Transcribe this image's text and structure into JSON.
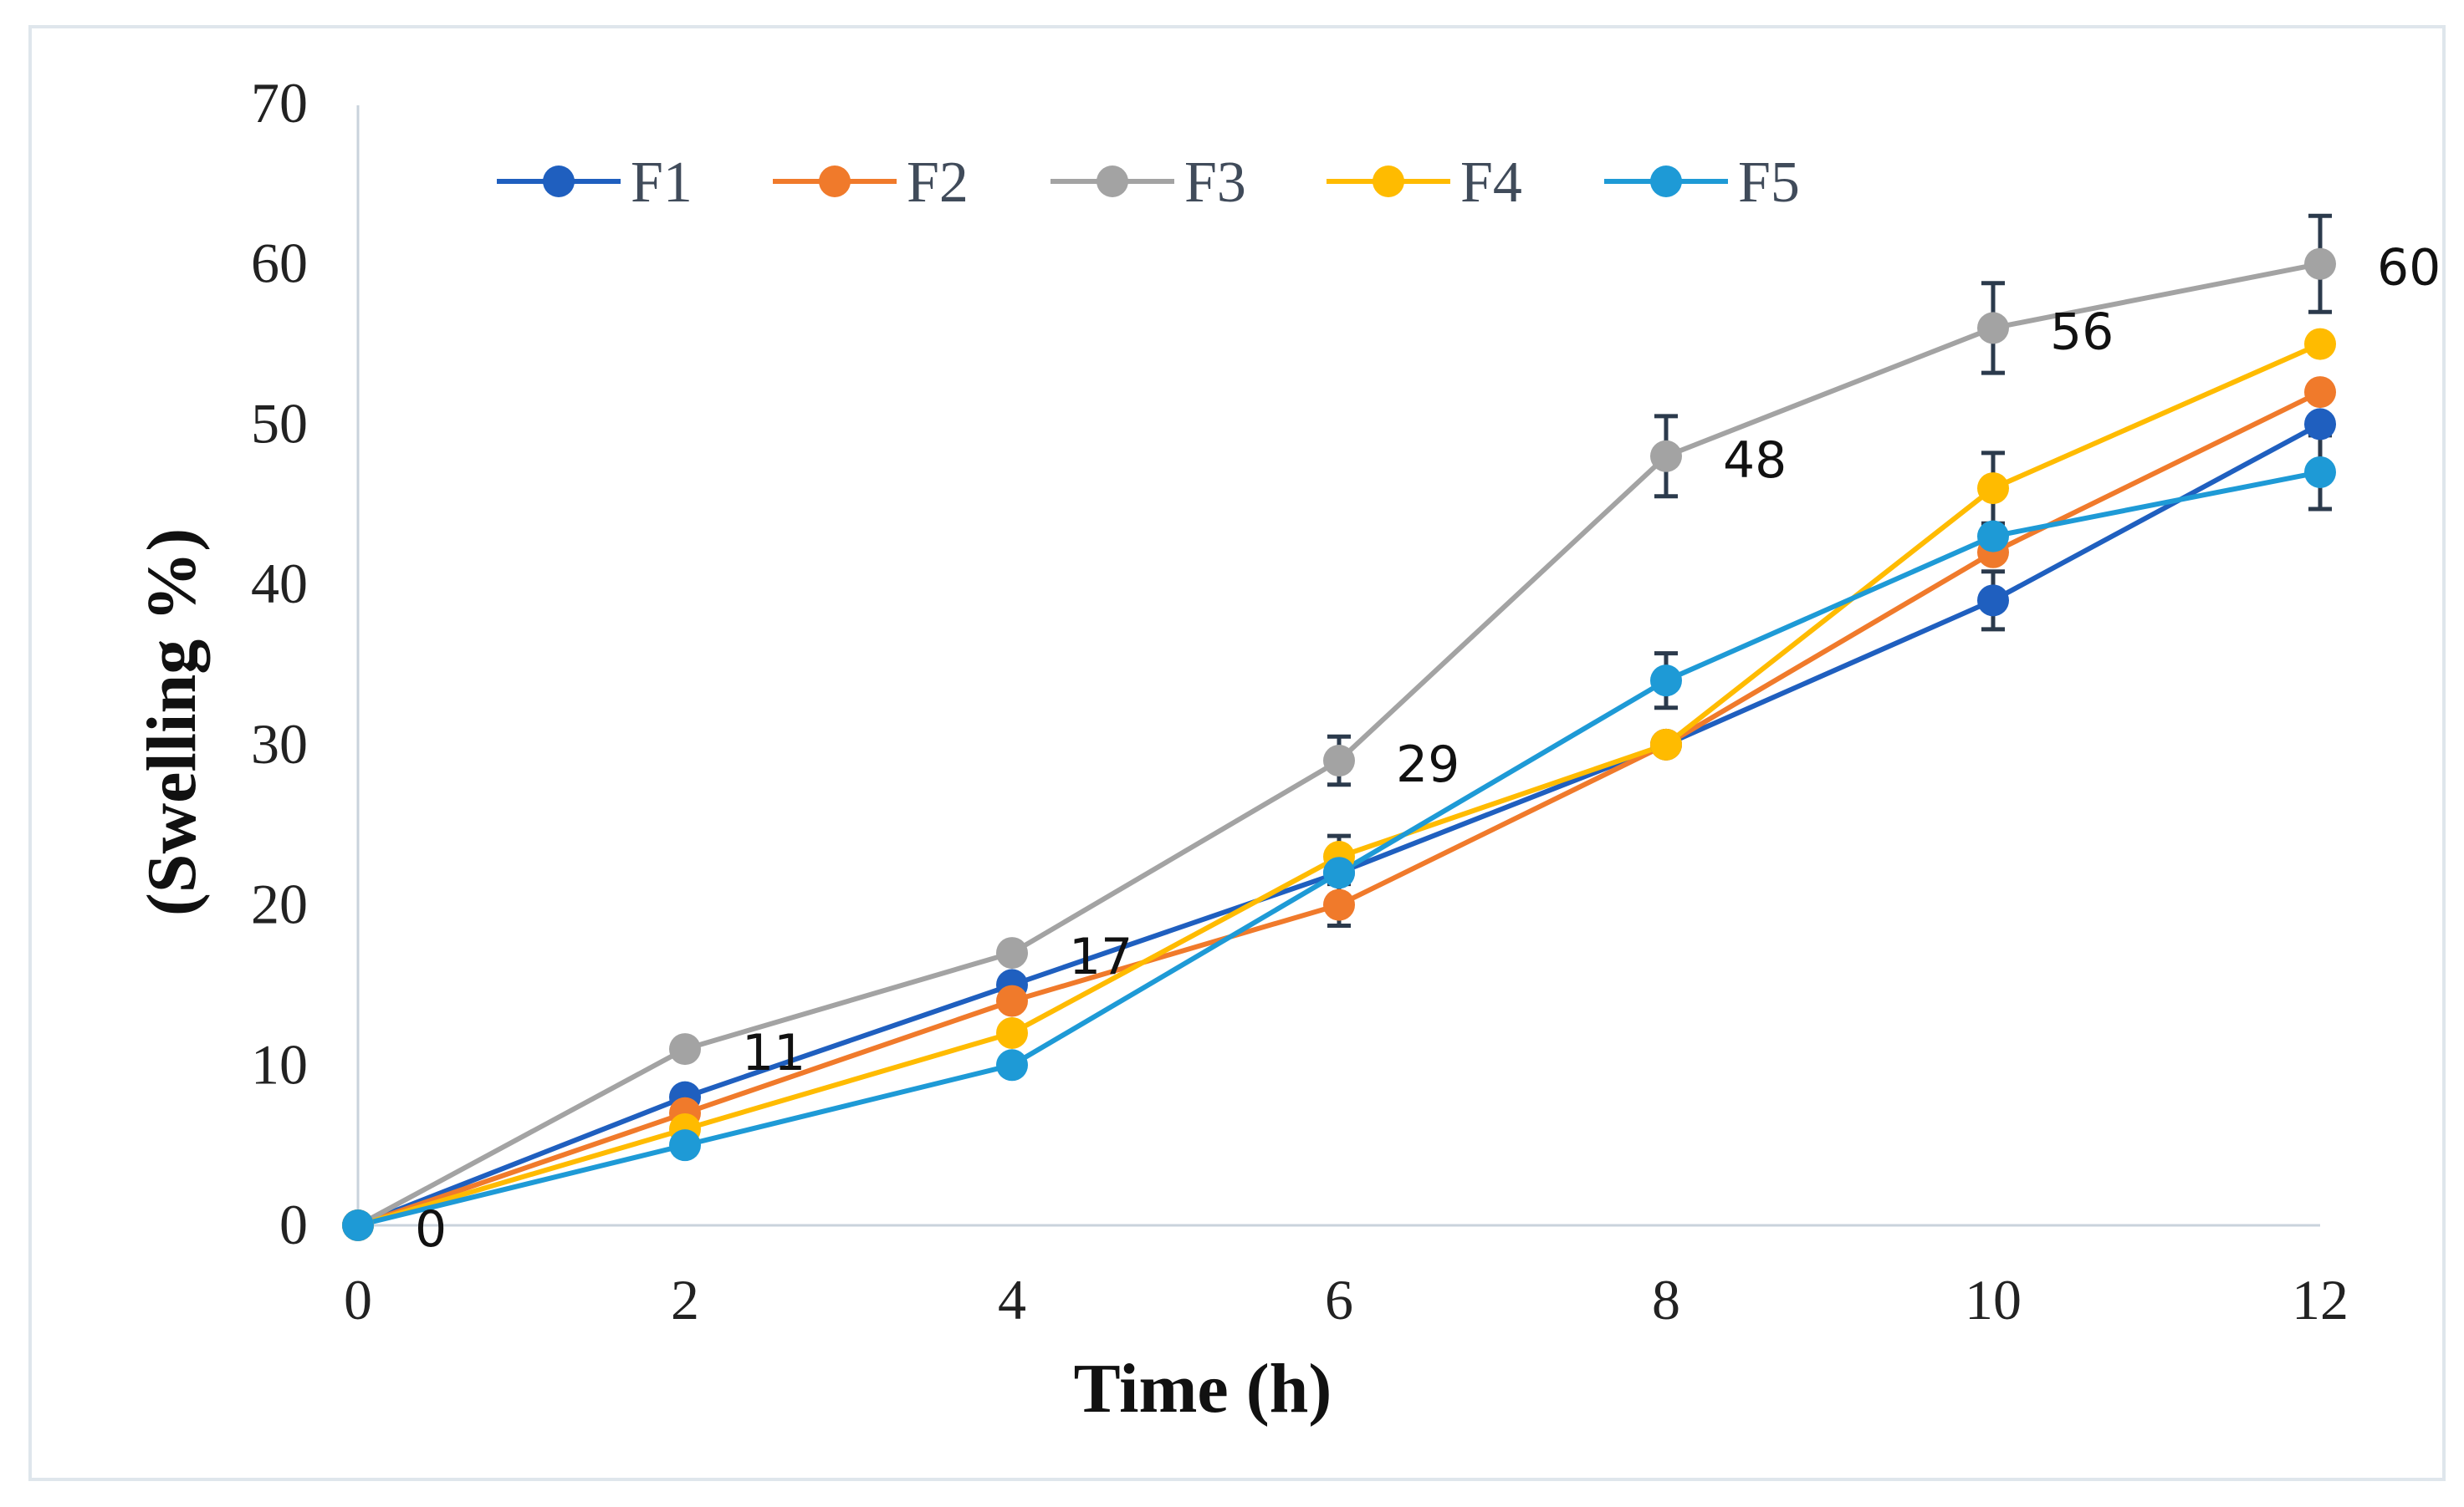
{
  "chart_data": {
    "type": "line",
    "title": "",
    "xlabel": "Time (h)",
    "ylabel": "(Swelling %)",
    "x": [
      0,
      2,
      4,
      6,
      8,
      10,
      12
    ],
    "xlim": [
      0,
      12
    ],
    "ylim": [
      0,
      70
    ],
    "x_ticks": [
      "0",
      "2",
      "4",
      "6",
      "8",
      "10",
      "12"
    ],
    "y_ticks": [
      "0",
      "10",
      "20",
      "30",
      "40",
      "50",
      "60",
      "70"
    ],
    "grid": false,
    "legend_position": "top",
    "series": [
      {
        "name": "F1",
        "color": "#1f5fbf",
        "values": [
          0,
          8,
          15,
          22,
          30,
          39,
          50
        ],
        "errors": [
          0,
          0,
          0,
          0,
          0,
          1.8,
          0
        ]
      },
      {
        "name": "F2",
        "color": "#f07a2b",
        "values": [
          0,
          7,
          14,
          20,
          30,
          42,
          52
        ],
        "errors": [
          0,
          0,
          0,
          1.3,
          0,
          0,
          0
        ]
      },
      {
        "name": "F3",
        "color": "#a3a3a3",
        "values": [
          0,
          11,
          17,
          29,
          48,
          56,
          60
        ],
        "errors": [
          0,
          0,
          0,
          1.5,
          2.5,
          2.8,
          3
        ]
      },
      {
        "name": "F4",
        "color": "#ffbb00",
        "values": [
          0,
          6,
          12,
          23,
          30,
          46,
          55
        ],
        "errors": [
          0,
          0,
          0,
          1.3,
          0,
          2.2,
          0
        ]
      },
      {
        "name": "F5",
        "color": "#1e9ad6",
        "values": [
          0,
          5,
          10,
          22,
          34,
          43,
          47
        ],
        "errors": [
          0,
          0,
          0,
          0,
          1.7,
          0,
          2.3
        ]
      }
    ],
    "data_labels": [
      {
        "series": "F3",
        "x": 0,
        "text": "0"
      },
      {
        "series": "F3",
        "x": 2,
        "text": "11"
      },
      {
        "series": "F3",
        "x": 4,
        "text": "17"
      },
      {
        "series": "F3",
        "x": 6,
        "text": "29"
      },
      {
        "series": "F3",
        "x": 8,
        "text": "48"
      },
      {
        "series": "F3",
        "x": 10,
        "text": "56"
      },
      {
        "series": "F3",
        "x": 12,
        "text": "60"
      }
    ]
  }
}
